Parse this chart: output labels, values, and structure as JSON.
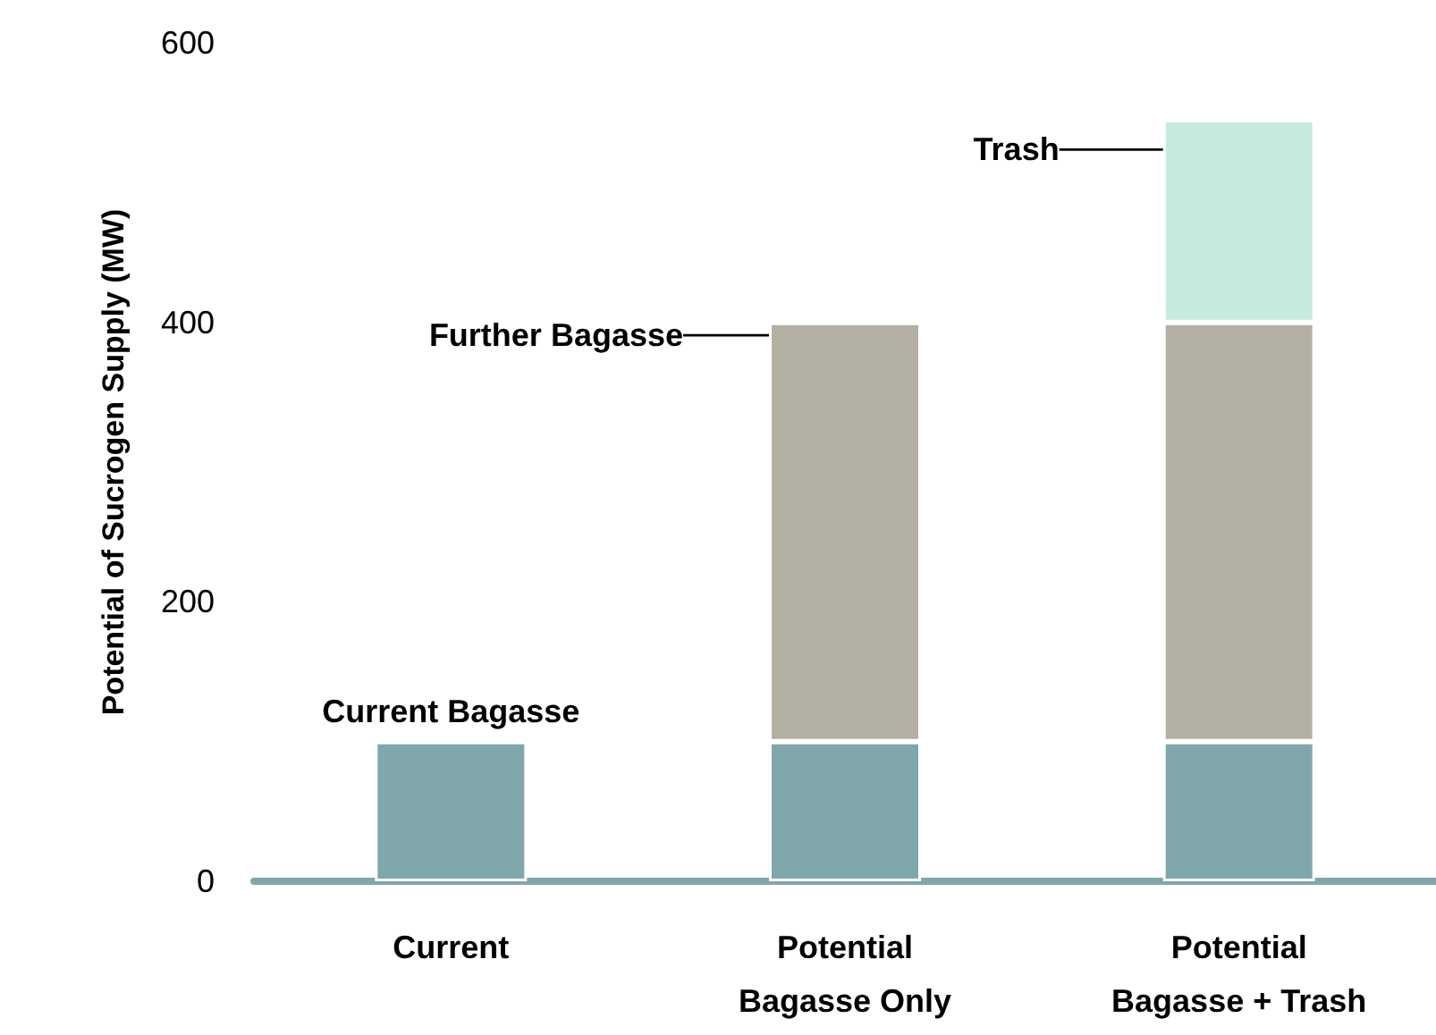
{
  "chart_data": {
    "type": "bar",
    "stacked": true,
    "ylabel": "Potential of Sucrogen Supply (MW)",
    "categories": [
      "Current",
      "Potential Bagasse Only",
      "Potential Bagasse + Trash"
    ],
    "series": [
      {
        "name": "Current Bagasse",
        "color": "#7fa7ac",
        "values": [
          100,
          100,
          100
        ]
      },
      {
        "name": "Further Bagasse",
        "color": "#b3b0a3",
        "values": [
          null,
          300,
          300
        ]
      },
      {
        "name": "Trash",
        "color": "#c6ebdd",
        "values": [
          null,
          null,
          145
        ]
      }
    ],
    "ylim": [
      0,
      600
    ],
    "yticks": [
      0,
      200,
      400,
      600
    ],
    "grid": false,
    "legend": false
  }
}
